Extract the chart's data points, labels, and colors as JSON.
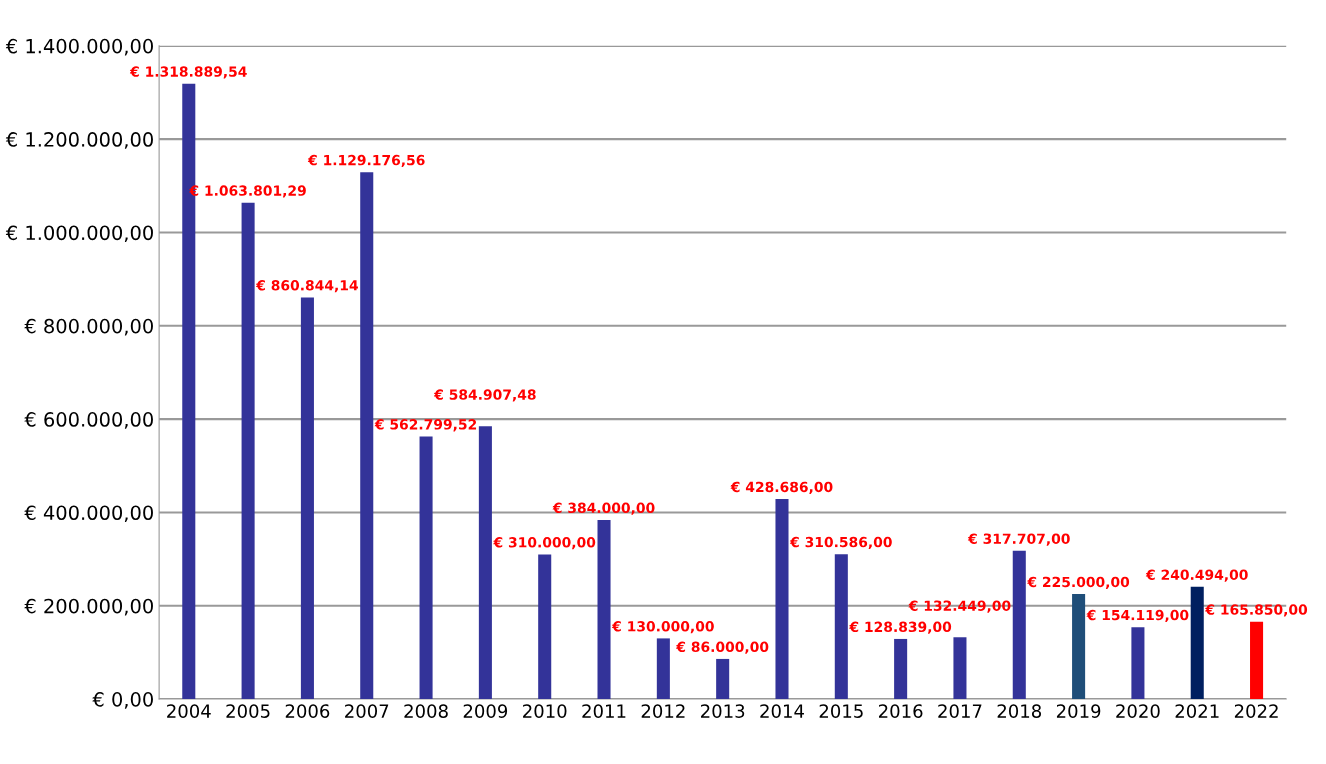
{
  "chart_data": {
    "type": "bar",
    "categories": [
      "2004",
      "2005",
      "2006",
      "2007",
      "2008",
      "2009",
      "2010",
      "2011",
      "2012",
      "2013",
      "2014",
      "2015",
      "2016",
      "2017",
      "2018",
      "2019",
      "2020",
      "2021",
      "2022"
    ],
    "values": [
      1318889.54,
      1063801.29,
      860844.14,
      1129176.56,
      562799.52,
      584907.48,
      310000,
      384000,
      130000,
      86000,
      428686,
      310586,
      128839,
      132449,
      317707,
      225000,
      154119,
      240494,
      165850
    ],
    "colors": [
      "#333399",
      "#333399",
      "#333399",
      "#333399",
      "#333399",
      "#333399",
      "#333399",
      "#333399",
      "#333399",
      "#333399",
      "#333399",
      "#333399",
      "#333399",
      "#333399",
      "#333399",
      "#1f4e79",
      "#333399",
      "#002060",
      "#ff0000"
    ],
    "value_labels": [
      "€ 1.318.889,54",
      "€ 1.063.801,29",
      "€ 860.844,14",
      "€ 1.129.176,56",
      "€ 562.799,52",
      "€ 584.907,48",
      "€ 310.000,00",
      "€ 384.000,00",
      "€ 130.000,00",
      "€ 86.000,00",
      "€ 428.686,00",
      "€ 310.586,00",
      "€ 128.839,00",
      "€ 132.449,00",
      "€ 317.707,00",
      "€ 225.000,00",
      "€ 154.119,00",
      "€ 240.494,00",
      "€ 165.850,00"
    ],
    "ylim": [
      0,
      1400000
    ],
    "yticks": [
      {
        "value": 0,
        "label": "€ 0,00"
      },
      {
        "value": 200000,
        "label": "€ 200.000,00"
      },
      {
        "value": 400000,
        "label": "€ 400.000,00"
      },
      {
        "value": 600000,
        "label": "€ 600.000,00"
      },
      {
        "value": 800000,
        "label": "€ 800.000,00"
      },
      {
        "value": 1000000,
        "label": "€ 1.000.000,00"
      },
      {
        "value": 1200000,
        "label": "€ 1.200.000,00"
      },
      {
        "value": 1400000,
        "label": "€ 1.400.000,00"
      }
    ],
    "grid": "y",
    "legend": false
  }
}
